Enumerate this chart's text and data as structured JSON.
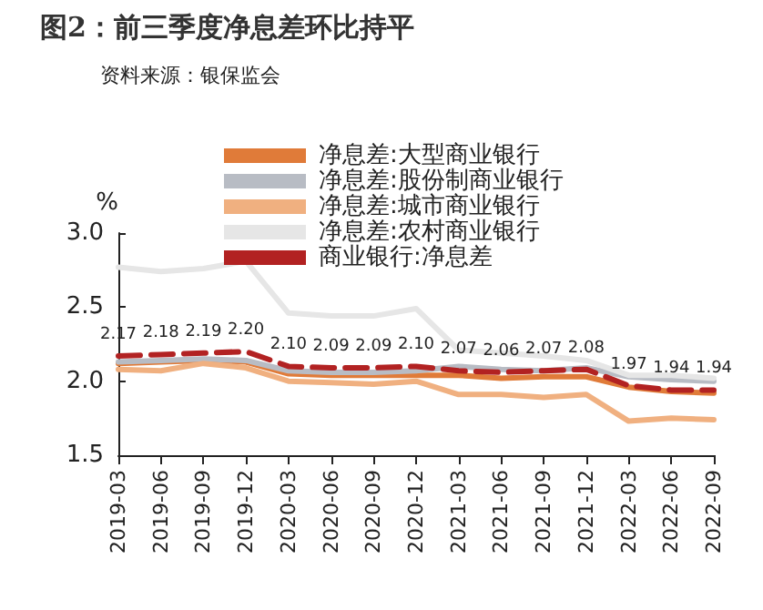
{
  "chart_data": {
    "type": "line",
    "title": "图2：前三季度净息差环比持平",
    "subtitle": "资料来源：银保监会",
    "ylabel": "%",
    "categories": [
      "2019-03",
      "2019-06",
      "2019-09",
      "2019-12",
      "2020-03",
      "2020-06",
      "2020-09",
      "2020-12",
      "2021-03",
      "2021-06",
      "2021-09",
      "2021-12",
      "2022-03",
      "2022-06",
      "2022-09"
    ],
    "ylim": [
      1.5,
      3.0
    ],
    "yticks": [
      1.5,
      {
        "value": 2,
        "label": "2.0"
      },
      2.5,
      {
        "value": 3,
        "label": "3.0"
      }
    ],
    "grid": false,
    "legend": "top",
    "marker": "none",
    "series": [
      {
        "name": "净息差:大型商业银行",
        "color": "#e07b39",
        "values": [
          2.12,
          2.13,
          2.14,
          2.13,
          2.05,
          2.04,
          2.04,
          2.04,
          2.04,
          2.02,
          2.03,
          2.03,
          1.96,
          1.93,
          1.92
        ]
      },
      {
        "name": "净息差:股份制商业银行",
        "color": "#b8bcc4",
        "values": [
          2.13,
          2.14,
          2.15,
          2.14,
          2.07,
          2.06,
          2.06,
          2.07,
          2.1,
          2.08,
          2.07,
          2.09,
          2.03,
          2.01,
          2.0
        ]
      },
      {
        "name": "净息差:城市商业银行",
        "color": "#f0b080",
        "values": [
          2.08,
          2.07,
          2.12,
          2.09,
          2.0,
          1.99,
          1.98,
          2.0,
          1.91,
          1.91,
          1.89,
          1.91,
          1.73,
          1.75,
          1.74
        ]
      },
      {
        "name": "净息差:农村商业银行",
        "color": "#e6e6e6",
        "values": [
          2.77,
          2.74,
          2.76,
          2.81,
          2.46,
          2.44,
          2.44,
          2.49,
          2.21,
          2.19,
          2.17,
          2.14,
          2.04,
          2.04,
          2.02
        ]
      },
      {
        "name": "商业银行:净息差",
        "color": "#b22222",
        "line_style": "dashed",
        "values": [
          2.17,
          2.18,
          2.19,
          2.2,
          2.1,
          2.09,
          2.09,
          2.1,
          2.07,
          2.06,
          2.07,
          2.08,
          1.97,
          1.94,
          1.94
        ],
        "value_labels": [
          "2.17",
          "2.18",
          "2.19",
          "2.20",
          "2.10",
          "2.09",
          "2.09",
          "2.10",
          "2.07",
          "2.06",
          "2.07",
          "2.08",
          "1.97",
          "1.94",
          "1.94"
        ]
      }
    ]
  }
}
